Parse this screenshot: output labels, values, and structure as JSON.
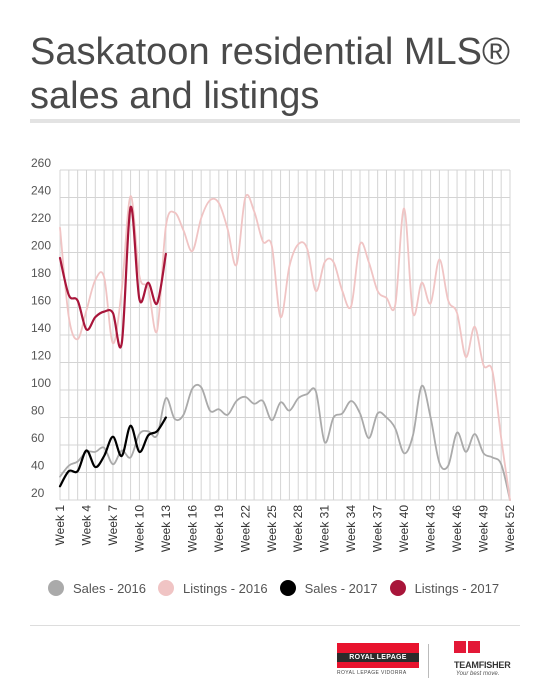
{
  "title": "Saskatoon residential MLS® sales and listings",
  "chart_data": {
    "type": "line",
    "title": "Saskatoon residential MLS® sales and listings",
    "xlabel": "",
    "ylabel": "",
    "ylim": [
      20,
      260
    ],
    "yticks": [
      20,
      40,
      60,
      80,
      100,
      120,
      140,
      160,
      180,
      200,
      220,
      240,
      260
    ],
    "xlim": [
      1,
      52
    ],
    "xticks": [
      "Week 1",
      "Week 4",
      "Week 7",
      "Week 10",
      "Week 13",
      "Week 16",
      "Week 19",
      "Week 22",
      "Week 25",
      "Week 28",
      "Week 31",
      "Week 34",
      "Week 37",
      "Week 40",
      "Week 43",
      "Week 46",
      "Week 49",
      "Week 52"
    ],
    "grid": true,
    "legend_position": "bottom",
    "series": [
      {
        "name": "Sales - 2016",
        "color": "#aaaaaa",
        "x": [
          1,
          2,
          3,
          4,
          5,
          6,
          7,
          8,
          9,
          10,
          11,
          12,
          13,
          14,
          15,
          16,
          17,
          18,
          19,
          20,
          21,
          22,
          23,
          24,
          25,
          26,
          27,
          28,
          29,
          30,
          31,
          32,
          33,
          34,
          35,
          36,
          37,
          38,
          39,
          40,
          41,
          42,
          43,
          44,
          45,
          46,
          47,
          48,
          49,
          50,
          51,
          52
        ],
        "values": [
          37,
          45,
          48,
          55,
          55,
          58,
          46,
          56,
          51,
          68,
          70,
          67,
          94,
          79,
          82,
          101,
          102,
          85,
          86,
          82,
          92,
          95,
          90,
          92,
          78,
          91,
          85,
          94,
          97,
          99,
          62,
          80,
          83,
          92,
          83,
          65,
          83,
          80,
          72,
          54,
          67,
          103,
          80,
          47,
          45,
          69,
          55,
          68,
          54,
          51,
          46,
          20
        ]
      },
      {
        "name": "Listings - 2016",
        "color": "#f0c4c4",
        "x": [
          1,
          2,
          3,
          4,
          5,
          6,
          7,
          8,
          9,
          10,
          11,
          12,
          13,
          14,
          15,
          16,
          17,
          18,
          19,
          20,
          21,
          22,
          23,
          24,
          25,
          26,
          27,
          28,
          29,
          30,
          31,
          32,
          33,
          34,
          35,
          36,
          37,
          38,
          39,
          40,
          41,
          42,
          43,
          44,
          45,
          46,
          47,
          48,
          49,
          50,
          51,
          52
        ],
        "values": [
          218,
          153,
          137,
          158,
          180,
          182,
          134,
          173,
          241,
          183,
          174,
          143,
          219,
          229,
          216,
          201,
          225,
          238,
          236,
          217,
          191,
          240,
          230,
          208,
          205,
          153,
          190,
          206,
          203,
          172,
          193,
          193,
          172,
          161,
          206,
          193,
          172,
          167,
          162,
          232,
          156,
          178,
          163,
          195,
          165,
          156,
          124,
          146,
          118,
          114,
          65,
          20
        ]
      },
      {
        "name": "Sales - 2017",
        "color": "#000000",
        "x": [
          1,
          2,
          3,
          4,
          5,
          6,
          7,
          8,
          9,
          10,
          11,
          12,
          13
        ],
        "values": [
          30,
          41,
          41,
          56,
          44,
          52,
          66,
          52,
          74,
          55,
          67,
          70,
          80
        ]
      },
      {
        "name": "Listings - 2017",
        "color": "#a8153a",
        "x": [
          1,
          2,
          3,
          4,
          5,
          6,
          7,
          8,
          9,
          10,
          11,
          12,
          13
        ],
        "values": [
          196,
          169,
          165,
          144,
          153,
          157,
          156,
          134,
          233,
          166,
          178,
          163,
          199
        ]
      }
    ]
  },
  "logos": {
    "royal_lepage": {
      "brand": "ROYAL LEPAGE",
      "sub": "ROYAL LEPAGE VIDORRA"
    },
    "team_fisher": {
      "brand": "TEAMFISHER",
      "tagline": "Your best move."
    }
  }
}
